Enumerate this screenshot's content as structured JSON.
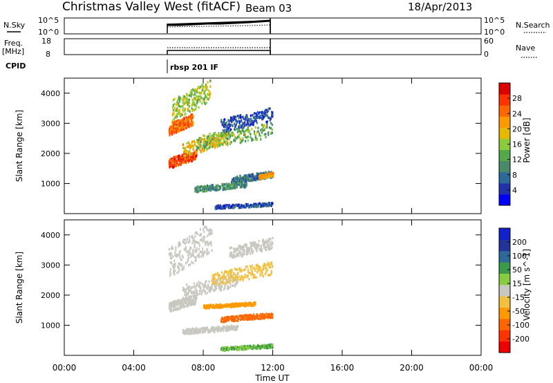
{
  "header": {
    "station_title": "Christmas Valley West (fitACF)",
    "beam_label": "Beam 03",
    "date": "18/Apr/2013"
  },
  "top_panels": {
    "nsky_label": "N.Sky",
    "nsky_ticks": [
      "10^5",
      "10^0"
    ],
    "nsky_right_ticks": [
      "10^5",
      "10^0"
    ],
    "nsearch_label": "N.Search",
    "freq_label": "Freq.",
    "freq_unit": "[MHz]",
    "freq_ticks": [
      "18",
      "8"
    ],
    "nave_ticks": [
      "60",
      "0"
    ],
    "nave_label": "Nave",
    "cpid_label": "CPID",
    "cpid_value": "rbsp 201 IF"
  },
  "colors": {
    "power": [
      "#0000ff",
      "#2233aa",
      "#2d6a9a",
      "#4a8a6a",
      "#55a84a",
      "#8ccc3a",
      "#e6b800",
      "#ff9900",
      "#ff6600",
      "#ff3300",
      "#dd0000"
    ],
    "velocity": [
      "#ee0000",
      "#ff3300",
      "#ff6600",
      "#ff9900",
      "#f2c040",
      "#c8c8c0",
      "#88cc44",
      "#3a9a4a",
      "#2d6a9a",
      "#22339a",
      "#1122cc"
    ]
  },
  "chart_data": [
    {
      "type": "heatmap",
      "panel": "power",
      "ylabel": "Slant Range [km]",
      "yticks": [
        "1000",
        "2000",
        "3000",
        "4000"
      ],
      "ylim": [
        0,
        4500
      ],
      "xlim_hours": [
        0,
        24
      ],
      "colorbar_label": "Power [dB]",
      "colorbar_ticks": [
        "4",
        "8",
        "12",
        "16",
        "20",
        "24",
        "28"
      ],
      "colorbar_range": [
        0,
        32
      ],
      "data_window": [
        "06:00",
        "12:00"
      ],
      "bands": [
        {
          "t0": 6.0,
          "t1": 7.6,
          "r0": 1500,
          "r1": 2100,
          "value": 27
        },
        {
          "t0": 6.8,
          "t1": 9.5,
          "r0": 1900,
          "r1": 2700,
          "value": 20
        },
        {
          "t0": 7.6,
          "t1": 12.0,
          "r0": 2100,
          "r1": 3000,
          "value": 14
        },
        {
          "t0": 6.0,
          "t1": 7.4,
          "r0": 2600,
          "r1": 3300,
          "value": 24
        },
        {
          "t0": 6.2,
          "t1": 8.4,
          "r0": 3100,
          "r1": 4400,
          "value": 16
        },
        {
          "t0": 9.6,
          "t1": 12.0,
          "r0": 1000,
          "r1": 1400,
          "value": 8
        },
        {
          "t0": 11.2,
          "t1": 12.0,
          "r0": 1150,
          "r1": 1350,
          "value": 22
        },
        {
          "t0": 7.5,
          "t1": 10.5,
          "r0": 700,
          "r1": 1050,
          "value": 10
        },
        {
          "t0": 9.0,
          "t1": 12.0,
          "r0": 2700,
          "r1": 3500,
          "value": 6
        },
        {
          "t0": 8.6,
          "t1": 12.0,
          "r0": 150,
          "r1": 350,
          "value": 6
        }
      ]
    },
    {
      "type": "heatmap",
      "panel": "velocity",
      "ylabel": "Slant Range [km]",
      "yticks": [
        "1000",
        "2000",
        "3000",
        "4000"
      ],
      "ylim": [
        0,
        4500
      ],
      "xlim_hours": [
        0,
        24
      ],
      "colorbar_label": "Velocity [m s^-1]",
      "colorbar_ticks": [
        "-200",
        "-100",
        "-50",
        "-15",
        "15",
        "50",
        "100",
        "200"
      ],
      "xticks": [
        "00:00",
        "04:00",
        "08:00",
        "12:00",
        "16:00",
        "20:00",
        "00:00"
      ],
      "xlabel": "Time UT",
      "bands": [
        {
          "t0": 6.0,
          "t1": 7.6,
          "r0": 1450,
          "r1": 2000,
          "value": 0
        },
        {
          "t0": 6.8,
          "t1": 10.0,
          "r0": 1900,
          "r1": 2700,
          "value": 5
        },
        {
          "t0": 8.5,
          "t1": 12.0,
          "r0": 2300,
          "r1": 3100,
          "value": -20
        },
        {
          "t0": 6.0,
          "t1": 8.5,
          "r0": 2600,
          "r1": 4400,
          "value": -10
        },
        {
          "t0": 9.0,
          "t1": 12.0,
          "r0": 1100,
          "r1": 1400,
          "value": -60
        },
        {
          "t0": 8.0,
          "t1": 11.0,
          "r0": 1550,
          "r1": 1750,
          "value": -45
        },
        {
          "t0": 6.8,
          "t1": 10.0,
          "r0": 700,
          "r1": 1000,
          "value": 8
        },
        {
          "t0": 9.0,
          "t1": 12.0,
          "r0": 150,
          "r1": 350,
          "value": 30
        },
        {
          "t0": 9.5,
          "t1": 12.0,
          "r0": 3200,
          "r1": 3900,
          "value": -5
        }
      ]
    }
  ]
}
